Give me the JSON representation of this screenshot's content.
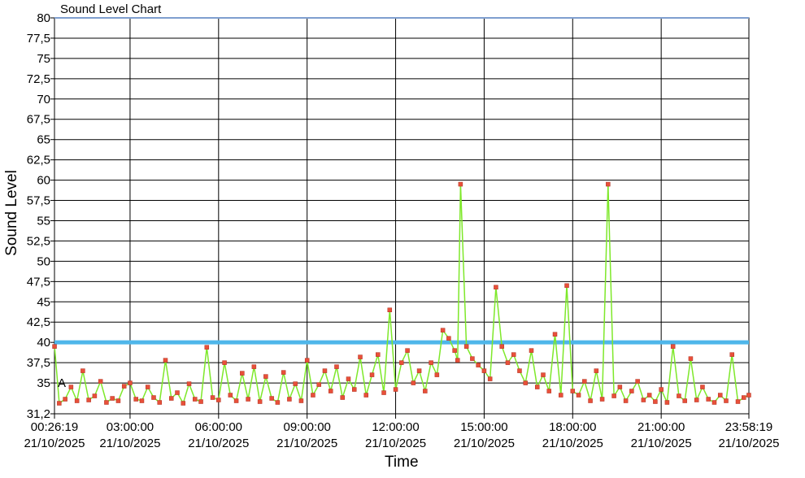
{
  "chart_data": {
    "type": "line",
    "title": "Sound Level Chart",
    "xlabel": "Time",
    "ylabel": "Sound Level",
    "ylim": [
      31.2,
      80
    ],
    "yticks": [
      "80",
      "77,5",
      "75",
      "72,5",
      "70",
      "67,5",
      "65",
      "62,5",
      "60",
      "57,5",
      "55",
      "52,5",
      "50",
      "47,5",
      "45",
      "42,5",
      "40",
      "37,5",
      "35",
      "31,2"
    ],
    "yticks_values": [
      80,
      77.5,
      75,
      72.5,
      70,
      67.5,
      65,
      62.5,
      60,
      57.5,
      55,
      52.5,
      50,
      47.5,
      45,
      42.5,
      40,
      37.5,
      35,
      31.2
    ],
    "xlim_hours": [
      0.4386,
      23.9719
    ],
    "xticks": [
      {
        "time": "00:26:19",
        "date": "21/10/2025",
        "hour": 0.4386
      },
      {
        "time": "03:00:00",
        "date": "21/10/2025",
        "hour": 3
      },
      {
        "time": "06:00:00",
        "date": "21/10/2025",
        "hour": 6
      },
      {
        "time": "09:00:00",
        "date": "21/10/2025",
        "hour": 9
      },
      {
        "time": "12:00:00",
        "date": "21/10/2025",
        "hour": 12
      },
      {
        "time": "15:00:00",
        "date": "21/10/2025",
        "hour": 15
      },
      {
        "time": "18:00:00",
        "date": "21/10/2025",
        "hour": 18
      },
      {
        "time": "21:00:00",
        "date": "21/10/2025",
        "hour": 21
      },
      {
        "time": "23:58:19",
        "date": "21/10/2025",
        "hour": 23.9719
      }
    ],
    "threshold": {
      "value": 40,
      "color": "#4fb6ea"
    },
    "marker_label": {
      "text": "A",
      "value": 35
    },
    "grid": true,
    "series": [
      {
        "color": "#7ee82a",
        "marker_color": "#e8503a",
        "x_hours": [
          0.44,
          0.6,
          0.8,
          1.0,
          1.2,
          1.4,
          1.6,
          1.8,
          2.0,
          2.2,
          2.4,
          2.6,
          2.8,
          3.0,
          3.2,
          3.4,
          3.6,
          3.8,
          4.0,
          4.2,
          4.4,
          4.6,
          4.8,
          5.0,
          5.2,
          5.4,
          5.6,
          5.8,
          6.0,
          6.2,
          6.4,
          6.6,
          6.8,
          7.0,
          7.2,
          7.4,
          7.6,
          7.8,
          8.0,
          8.2,
          8.4,
          8.6,
          8.8,
          9.0,
          9.2,
          9.4,
          9.6,
          9.8,
          10.0,
          10.2,
          10.4,
          10.6,
          10.8,
          11.0,
          11.2,
          11.4,
          11.6,
          11.8,
          12.0,
          12.2,
          12.4,
          12.6,
          12.8,
          13.0,
          13.2,
          13.4,
          13.6,
          13.8,
          14.0,
          14.1,
          14.2,
          14.4,
          14.6,
          14.8,
          15.0,
          15.2,
          15.4,
          15.6,
          15.8,
          16.0,
          16.2,
          16.4,
          16.6,
          16.8,
          17.0,
          17.2,
          17.4,
          17.6,
          17.8,
          18.0,
          18.2,
          18.4,
          18.6,
          18.8,
          19.0,
          19.2,
          19.4,
          19.6,
          19.8,
          20.0,
          20.2,
          20.4,
          20.6,
          20.8,
          21.0,
          21.2,
          21.4,
          21.6,
          21.8,
          22.0,
          22.2,
          22.4,
          22.6,
          22.8,
          23.0,
          23.2,
          23.4,
          23.6,
          23.8,
          23.97
        ],
        "y": [
          39.5,
          32.5,
          33.0,
          34.5,
          32.8,
          36.5,
          32.9,
          33.4,
          35.2,
          32.6,
          33.1,
          32.8,
          34.6,
          35.0,
          33.0,
          32.8,
          34.5,
          33.2,
          32.6,
          37.8,
          33.1,
          33.8,
          32.5,
          34.9,
          33.0,
          32.7,
          39.4,
          33.2,
          32.9,
          37.5,
          33.5,
          32.8,
          36.2,
          33.0,
          37.0,
          32.7,
          35.8,
          33.1,
          32.6,
          36.3,
          33.0,
          34.9,
          32.8,
          37.8,
          33.5,
          34.8,
          36.5,
          34.0,
          37.0,
          33.2,
          35.5,
          34.2,
          38.2,
          33.5,
          36.0,
          38.5,
          33.8,
          44.0,
          34.2,
          37.5,
          39.0,
          35.0,
          36.5,
          34.0,
          37.5,
          36.0,
          41.5,
          40.5,
          39.0,
          37.8,
          59.5,
          39.5,
          38.0,
          37.2,
          36.5,
          35.5,
          46.8,
          39.5,
          37.5,
          38.5,
          36.5,
          35.0,
          39.0,
          34.5,
          36.0,
          34.0,
          41.0,
          33.5,
          47.0,
          34.0,
          33.5,
          35.2,
          32.8,
          36.5,
          33.0,
          59.5,
          33.4,
          34.5,
          32.8,
          34.0,
          35.2,
          32.9,
          33.5,
          32.7,
          34.2,
          32.6,
          39.5,
          33.4,
          32.8,
          38.0,
          32.9,
          34.5,
          33.0,
          32.6,
          33.5,
          32.8,
          38.5,
          32.7,
          33.2,
          33.5
        ]
      }
    ]
  }
}
